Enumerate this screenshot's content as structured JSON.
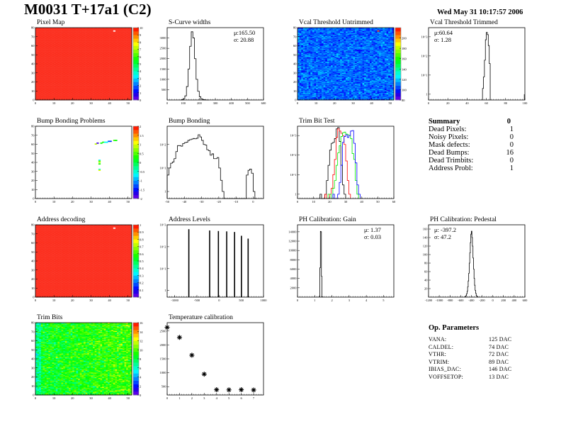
{
  "header": {
    "title": "M0031 T+17a1 (C2)",
    "date": "Wed May 31 10:17:57 2006"
  },
  "summary": {
    "title": "Summary",
    "value": "0",
    "rows": [
      {
        "label": "Dead Pixels:",
        "value": "1"
      },
      {
        "label": "Noisy Pixels:",
        "value": "0"
      },
      {
        "label": "Mask defects:",
        "value": "0"
      },
      {
        "label": "Dead Bumps:",
        "value": "16"
      },
      {
        "label": "Dead Trimbits:",
        "value": "0"
      },
      {
        "label": "Address Probl:",
        "value": "1"
      }
    ]
  },
  "op_parameters": {
    "title": "Op. Parameters",
    "rows": [
      {
        "label": "VANA:",
        "value": "125 DAC"
      },
      {
        "label": "CALDEL:",
        "value": "74 DAC"
      },
      {
        "label": "VTHR:",
        "value": "72 DAC"
      },
      {
        "label": "VTRIM:",
        "value": "89 DAC"
      },
      {
        "label": "IBIAS_DAC:",
        "value": "146 DAC"
      },
      {
        "label": "VOFFSETOP:",
        "value": "13 DAC"
      }
    ]
  },
  "colors": {
    "hist_line": "#000000",
    "trim_series": [
      "#000000",
      "#ff0000",
      "#00ee00",
      "#0000ff"
    ]
  },
  "chart_data": [
    {
      "id": "pixel-map",
      "title": "Pixel Map",
      "type": "heatmap",
      "xlim": [
        0,
        52
      ],
      "ylim": [
        0,
        80
      ],
      "xticks": [
        0,
        10,
        20,
        30,
        40,
        50
      ],
      "yticks": [
        0,
        10,
        20,
        30,
        40,
        50,
        60,
        70,
        80
      ],
      "zlim": [
        0,
        10
      ],
      "zticks": [
        0,
        1,
        2,
        3,
        4,
        5,
        6,
        7,
        8,
        9,
        10
      ],
      "fill_value": 10,
      "spread": 0,
      "special_pixels": [
        {
          "col": 42,
          "row": 76,
          "value": 0
        }
      ]
    },
    {
      "id": "s-curve-widths",
      "title": "S-Curve widths",
      "type": "bar",
      "xlim": [
        0,
        600
      ],
      "ylim": [
        0,
        3500
      ],
      "logy": false,
      "xticks": [
        0,
        100,
        200,
        300,
        400,
        500,
        600
      ],
      "yticks": [
        500,
        1000,
        1500,
        2000,
        2500,
        3000
      ],
      "x_start": 80,
      "bin_width": 10,
      "values": [
        5,
        20,
        60,
        200,
        650,
        1500,
        2600,
        3300,
        3000,
        2000,
        1000,
        420,
        160,
        60,
        25,
        10,
        5,
        2
      ],
      "stats": [
        "μ:165.50",
        "σ: 20.88"
      ]
    },
    {
      "id": "vcal-threshold-untrimmed",
      "title": "Vcal Threshold Untrimmed",
      "type": "heatmap",
      "xlim": [
        0,
        52
      ],
      "ylim": [
        0,
        80
      ],
      "xticks": [
        0,
        10,
        20,
        30,
        40,
        50
      ],
      "yticks": [
        0,
        10,
        20,
        30,
        40,
        50,
        60,
        70,
        80
      ],
      "zlim": [
        80,
        220
      ],
      "zticks": [
        80,
        100,
        120,
        140,
        160,
        180,
        200
      ],
      "fill_value": 108,
      "spread": 9,
      "special_pixels": [
        {
          "col": 43,
          "row": 76,
          "value": 215
        }
      ]
    },
    {
      "id": "vcal-threshold-trimmed",
      "title": "Vcal Threshold Trimmed",
      "type": "bar",
      "xlim": [
        0,
        100
      ],
      "ylim": [
        0.5,
        3000
      ],
      "logy": true,
      "xticks": [
        0,
        20,
        40,
        60,
        80,
        100
      ],
      "yticks": [
        1,
        10,
        100,
        1000
      ],
      "x_start": 56,
      "bin_width": 1,
      "values": [
        2,
        8,
        60,
        700,
        1700,
        1300,
        350,
        40
      ],
      "extra_bins": [
        {
          "x": 99,
          "value": 1
        }
      ],
      "stats": [
        "μ:60.64",
        "σ: 1.28"
      ]
    },
    {
      "id": "bump-bonding-problems",
      "title": "Bump Bonding Problems",
      "type": "heatmap",
      "xlim": [
        0,
        52
      ],
      "ylim": [
        0,
        80
      ],
      "xticks": [
        0,
        10,
        20,
        30,
        40,
        50
      ],
      "yticks": [
        0,
        10,
        20,
        30,
        40,
        50,
        60,
        70,
        80
      ],
      "zlim": [
        -2,
        2
      ],
      "zticks": [
        -2,
        -1.5,
        -1,
        -0.5,
        0,
        0.5,
        1,
        1.5,
        2
      ],
      "fill_value": null,
      "spread": 0,
      "special_pixels": [
        {
          "col": 32,
          "row": 60,
          "value": 0.9
        },
        {
          "col": 33,
          "row": 61,
          "value": -1.8
        },
        {
          "col": 35,
          "row": 61,
          "value": 0.2
        },
        {
          "col": 36,
          "row": 62,
          "value": 0.3
        },
        {
          "col": 37,
          "row": 62,
          "value": -0.6
        },
        {
          "col": 38,
          "row": 62,
          "value": -0.7
        },
        {
          "col": 39,
          "row": 63,
          "value": -1.2
        },
        {
          "col": 40,
          "row": 63,
          "value": -1.4
        },
        {
          "col": 42,
          "row": 64,
          "value": 0.4
        },
        {
          "col": 43,
          "row": 64,
          "value": 0.2
        },
        {
          "col": 34,
          "row": 42,
          "value": -0.7
        },
        {
          "col": 34,
          "row": 41,
          "value": 0.6
        },
        {
          "col": 34,
          "row": 40,
          "value": 0.8
        },
        {
          "col": 34,
          "row": 38,
          "value": 0.3
        },
        {
          "col": 34,
          "row": 32,
          "value": -0.6
        },
        {
          "col": 34,
          "row": 31,
          "value": 1.0
        }
      ]
    },
    {
      "id": "bump-bonding",
      "title": "Bump Bonding",
      "type": "bar",
      "xlim": [
        -50,
        6
      ],
      "ylim": [
        0.5,
        600
      ],
      "logy": true,
      "xticks": [
        -50,
        -40,
        -30,
        -20,
        -10,
        0
      ],
      "yticks": [
        1,
        10,
        100
      ],
      "x_start": -50,
      "bin_width": 1,
      "values": [
        5,
        10,
        16,
        18,
        25,
        50,
        90,
        90,
        85,
        110,
        120,
        125,
        150,
        160,
        170,
        180,
        175,
        185,
        260,
        210,
        150,
        100,
        95,
        60,
        55,
        35,
        40,
        25,
        25,
        28,
        10,
        3,
        1,
        0,
        0,
        0,
        0,
        0,
        0,
        0,
        0,
        0,
        0,
        0,
        0,
        0,
        5,
        8,
        9,
        6,
        1,
        0
      ],
      "stats": []
    },
    {
      "id": "trim-bit-test",
      "title": "Trim Bit Test",
      "type": "bar",
      "xlim": [
        0,
        60
      ],
      "ylim": [
        0.6,
        3000
      ],
      "logy": true,
      "xticks": [
        0,
        10,
        20,
        30,
        40,
        50,
        60
      ],
      "yticks": [
        1,
        10,
        100,
        1000
      ],
      "series": [
        {
          "x_start": 14,
          "bin_width": 1,
          "values": [
            1,
            0,
            0,
            1,
            5,
            30,
            180,
            400,
            450,
            700,
            2200,
            2600,
            500,
            30,
            3,
            1
          ]
        },
        {
          "x_start": 17,
          "bin_width": 1,
          "values": [
            1,
            0,
            0,
            1,
            2,
            10,
            60,
            800,
            2200,
            1700,
            1300,
            1000,
            350,
            50,
            5,
            1
          ]
        },
        {
          "x_start": 19,
          "bin_width": 1,
          "values": [
            1,
            1,
            0,
            2,
            5,
            30,
            130,
            300,
            900,
            1400,
            1500,
            1200,
            1100,
            1000,
            700,
            120,
            60,
            5,
            1
          ]
        },
        {
          "x_start": 22,
          "bin_width": 1,
          "values": [
            1,
            0,
            0,
            1,
            4,
            30,
            450,
            900,
            1100,
            800,
            1000,
            1700,
            1800,
            400,
            40,
            3,
            1
          ]
        }
      ],
      "stats": []
    },
    {
      "id": "address-decoding",
      "title": "Address decoding",
      "type": "heatmap",
      "xlim": [
        0,
        52
      ],
      "ylim": [
        0,
        80
      ],
      "xticks": [
        0,
        10,
        20,
        30,
        40,
        50
      ],
      "yticks": [
        0,
        10,
        20,
        30,
        40,
        50,
        60,
        70,
        80
      ],
      "zlim": [
        0,
        1
      ],
      "zticks": [
        0,
        0.1,
        0.2,
        0.3,
        0.4,
        0.5,
        0.6,
        0.7,
        0.8,
        0.9,
        1
      ],
      "fill_value": 1,
      "spread": 0,
      "special_pixels": [
        {
          "col": 42,
          "row": 76,
          "value": 0
        }
      ]
    },
    {
      "id": "address-levels",
      "title": "Address Levels",
      "type": "bar",
      "xlim": [
        -1170,
        1000
      ],
      "ylim": [
        0.5,
        1000
      ],
      "logy": true,
      "xticks": [
        -1000,
        -500,
        0,
        500,
        1000
      ],
      "yticks": [
        1,
        10,
        100,
        1000
      ],
      "peaks": [
        {
          "x": -682,
          "value": 630
        },
        {
          "x": -213,
          "value": 550
        },
        {
          "x": -16,
          "value": 520
        },
        {
          "x": 171,
          "value": 500
        },
        {
          "x": 348,
          "value": 470
        },
        {
          "x": 503,
          "value": 316
        },
        {
          "x": 654,
          "value": 234
        }
      ],
      "stats": []
    },
    {
      "id": "ph-calibration-gain",
      "title": "PH Calibration: Gain",
      "type": "bar",
      "xlim": [
        0,
        5.6
      ],
      "ylim": [
        0,
        15500
      ],
      "logy": false,
      "xticks": [
        0,
        1,
        2,
        3,
        4,
        5
      ],
      "yticks": [
        2000,
        4000,
        6000,
        8000,
        10000,
        12000,
        14000
      ],
      "x_start": 1.27,
      "bin_width": 0.03,
      "values": [
        200,
        6300,
        14100,
        14000,
        4500,
        100
      ],
      "stats": [
        "μ: 1.37",
        "σ: 0.03"
      ]
    },
    {
      "id": "ph-calibration-pedestal",
      "title": "PH Calibration: Pedestal",
      "type": "bar",
      "xlim": [
        -1200,
        600
      ],
      "ylim": [
        0,
        170
      ],
      "logy": false,
      "xticks": [
        -1200,
        -1000,
        -800,
        -600,
        -400,
        -200,
        0,
        200,
        400,
        600
      ],
      "yticks": [
        20,
        40,
        60,
        80,
        100,
        120,
        140,
        160
      ],
      "x_start": -520,
      "bin_width": 10,
      "values": [
        1,
        2,
        4,
        8,
        14,
        24,
        38,
        56,
        80,
        104,
        128,
        148,
        155,
        140,
        120,
        92,
        66,
        44,
        28,
        16,
        9,
        4,
        2,
        1
      ],
      "stats": [
        "μ: -397.2",
        "σ: 47.2"
      ]
    },
    {
      "id": "trim-bits",
      "title": "Trim Bits",
      "type": "heatmap",
      "xlim": [
        0,
        52
      ],
      "ylim": [
        0,
        80
      ],
      "xticks": [
        0,
        10,
        20,
        30,
        40,
        50
      ],
      "yticks": [
        0,
        10,
        20,
        30,
        40,
        50,
        60,
        70,
        80
      ],
      "zlim": [
        0,
        16
      ],
      "zticks": [
        0,
        2,
        4,
        6,
        8,
        10,
        12,
        14,
        16
      ],
      "fill_value": 8.5,
      "spread": 1.6,
      "special_pixels": []
    },
    {
      "id": "temperature-calibration",
      "title": "Temperature calibration",
      "type": "scatter",
      "xlim": [
        0,
        7.8
      ],
      "ylim": [
        200,
        2800
      ],
      "logy": false,
      "xticks": [
        0,
        1,
        2,
        3,
        4,
        5,
        6,
        7
      ],
      "yticks": [
        500,
        1000,
        1500,
        2000,
        2500
      ],
      "points": [
        [
          0,
          2630
        ],
        [
          1,
          2270
        ],
        [
          2,
          1630
        ],
        [
          3,
          950
        ],
        [
          4,
          390
        ],
        [
          5,
          385
        ],
        [
          6,
          390
        ],
        [
          7,
          380
        ]
      ],
      "stats": []
    }
  ]
}
